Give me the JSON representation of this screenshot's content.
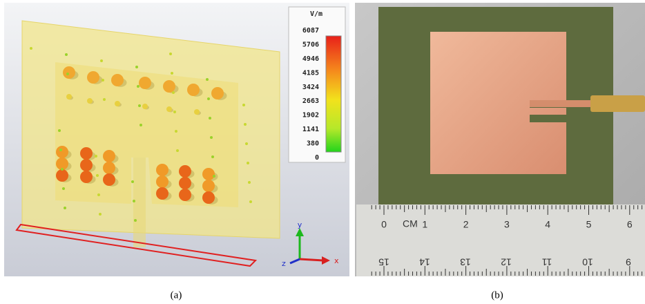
{
  "panel_a": {
    "colorbar": {
      "unit": "V/m",
      "labels": [
        "6087",
        "5706",
        "4946",
        "4185",
        "3424",
        "2663",
        "1902",
        "1141",
        "380",
        "0"
      ]
    },
    "axes": {
      "x": "x",
      "y": "y",
      "z": "z"
    },
    "caption": "(a)"
  },
  "panel_b": {
    "ruler": {
      "top_labels": [
        "0",
        "1",
        "2",
        "3",
        "4",
        "5",
        "6"
      ],
      "unit": "CM",
      "bottom_labels": [
        "15",
        "14",
        "13",
        "12",
        "11",
        "10",
        "9"
      ]
    },
    "caption": "(b)"
  }
}
